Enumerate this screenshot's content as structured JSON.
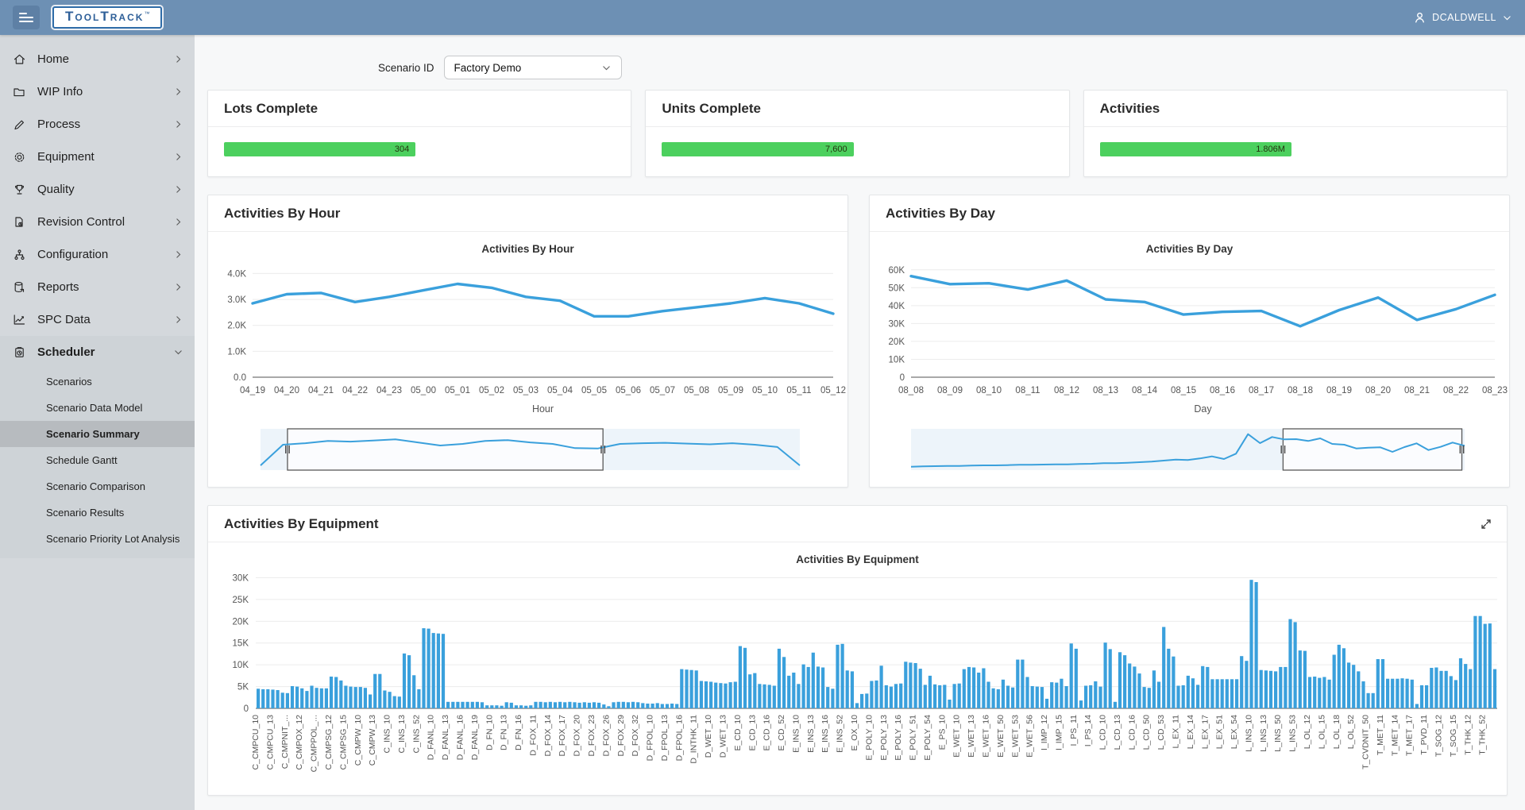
{
  "header": {
    "brand": "ToolTrack",
    "brand_tm": "TM",
    "user": "DCALDWELL"
  },
  "sidebar": {
    "items": [
      {
        "label": "Home",
        "icon": "home-icon"
      },
      {
        "label": "WIP Info",
        "icon": "folder-icon"
      },
      {
        "label": "Process",
        "icon": "pencil-icon"
      },
      {
        "label": "Equipment",
        "icon": "gear-icon"
      },
      {
        "label": "Quality",
        "icon": "trophy-icon"
      },
      {
        "label": "Revision Control",
        "icon": "document-icon"
      },
      {
        "label": "Configuration",
        "icon": "hierarchy-icon"
      },
      {
        "label": "Reports",
        "icon": "database-icon"
      },
      {
        "label": "SPC Data",
        "icon": "spc-chart-icon"
      }
    ],
    "scheduler": {
      "label": "Scheduler",
      "icon": "clipboard-clock-icon",
      "expanded": true,
      "children": [
        {
          "label": "Scenarios",
          "selected": false
        },
        {
          "label": "Scenario Data Model",
          "selected": false
        },
        {
          "label": "Scenario Summary",
          "selected": true
        },
        {
          "label": "Schedule Gantt",
          "selected": false
        },
        {
          "label": "Scenario Comparison",
          "selected": false
        },
        {
          "label": "Scenario Results",
          "selected": false
        },
        {
          "label": "Scenario Priority Lot Analysis",
          "selected": false
        }
      ]
    }
  },
  "toolbar": {
    "scenario_label": "Scenario ID",
    "scenario_value": "Factory Demo"
  },
  "kpis": [
    {
      "title": "Lots Complete",
      "value": "304",
      "fraction": 0.49,
      "color": "#4cd05e"
    },
    {
      "title": "Units Complete",
      "value": "7,600",
      "fraction": 0.49,
      "color": "#4cd05e"
    },
    {
      "title": "Activities",
      "value": "1.806M",
      "fraction": 0.49,
      "color": "#4cd05e"
    }
  ],
  "panels": {
    "hour": {
      "title": "Activities By Hour"
    },
    "day": {
      "title": "Activities By Day"
    },
    "equipment": {
      "title": "Activities By Equipment"
    }
  },
  "chart_data": [
    {
      "id": "hour",
      "type": "line",
      "title": "Activities By Hour",
      "xlabel": "Hour",
      "units": "activities (thousands)",
      "x": [
        "04_19",
        "04_20",
        "04_21",
        "04_22",
        "04_23",
        "05_00",
        "05_01",
        "05_02",
        "05_03",
        "05_04",
        "05_05",
        "05_06",
        "05_07",
        "05_08",
        "05_09",
        "05_10",
        "05_11",
        "05_12"
      ],
      "values": [
        2.85,
        3.2,
        3.25,
        2.9,
        3.1,
        3.35,
        3.6,
        3.45,
        3.1,
        2.95,
        2.35,
        2.35,
        2.55,
        2.7,
        2.85,
        3.05,
        2.85,
        2.45
      ],
      "ylim": [
        0,
        4.35
      ],
      "yticks": [
        {
          "v": 0,
          "label": "0.0"
        },
        {
          "v": 1,
          "label": "1.0K"
        },
        {
          "v": 2,
          "label": "2.0K"
        },
        {
          "v": 3,
          "label": "3.0K"
        },
        {
          "v": 4,
          "label": "4.0K"
        }
      ],
      "line_color": "#3aa0dc",
      "overview": {
        "values": [
          0.2,
          2.9,
          3.1,
          3.4,
          3.3,
          3.45,
          3.6,
          3.2,
          2.8,
          3.0,
          3.4,
          3.5,
          3.2,
          3.0,
          2.45,
          2.4,
          3.0,
          3.1,
          3.15,
          3.05,
          2.95,
          3.1,
          2.9,
          2.6,
          0.2
        ],
        "selection": [
          0.05,
          0.635
        ]
      }
    },
    {
      "id": "day",
      "type": "line",
      "title": "Activities By Day",
      "xlabel": "Day",
      "units": "activities (thousands)",
      "x": [
        "08_08",
        "08_09",
        "08_10",
        "08_11",
        "08_12",
        "08_13",
        "08_14",
        "08_15",
        "08_16",
        "08_17",
        "08_18",
        "08_19",
        "08_20",
        "08_21",
        "08_22",
        "08_23"
      ],
      "values": [
        56.5,
        52,
        52.5,
        49,
        54,
        43.5,
        42,
        35,
        36.5,
        37,
        28.5,
        37.5,
        44.5,
        32,
        38,
        46
      ],
      "ylim": [
        0,
        63
      ],
      "yticks": [
        {
          "v": 0,
          "label": "0"
        },
        {
          "v": 10,
          "label": "10K"
        },
        {
          "v": 20,
          "label": "20K"
        },
        {
          "v": 30,
          "label": "30K"
        },
        {
          "v": 40,
          "label": "40K"
        },
        {
          "v": 50,
          "label": "50K"
        },
        {
          "v": 60,
          "label": "60K"
        }
      ],
      "line_color": "#3aa0dc",
      "overview": {
        "values": [
          0.5,
          1,
          1.5,
          2,
          2,
          2.5,
          3,
          3,
          3.5,
          4,
          4,
          4.5,
          5,
          5,
          5.5,
          6,
          7,
          7,
          8,
          9,
          10,
          12,
          14,
          13,
          16,
          20,
          15,
          25,
          62,
          45,
          56.5,
          52,
          52.5,
          49,
          54,
          43.5,
          42,
          35,
          36.5,
          37,
          28.5,
          37.5,
          44.5,
          32,
          38,
          46,
          40
        ],
        "selection": [
          0.672,
          0.995
        ]
      }
    },
    {
      "id": "equipment",
      "type": "bar",
      "title": "Activities By Equipment",
      "units": "activities (thousands)",
      "label_every": 3,
      "labels": [
        "C_CMPCU_10",
        "C_CMPCU_13",
        "C_CMPNIT_...",
        "C_CMPOX_12",
        "C_CMPPOL_...",
        "C_CMPSG_12",
        "C_CMPSG_15",
        "C_CMPW_10",
        "C_CMPW_13",
        "C_INS_10",
        "C_INS_13",
        "C_INS_52",
        "D_FANL_10",
        "D_FANL_13",
        "D_FANL_16",
        "D_FANL_19",
        "D_FN_10",
        "D_FN_13",
        "D_FN_16",
        "D_FOX_11",
        "D_FOX_14",
        "D_FOX_17",
        "D_FOX_20",
        "D_FOX_23",
        "D_FOX_26",
        "D_FOX_29",
        "D_FOX_32",
        "D_FPOL_10",
        "D_FPOL_13",
        "D_FPOL_16",
        "D_INTHK_11",
        "D_WET_10",
        "D_WET_13",
        "E_CD_10",
        "E_CD_13",
        "E_CD_16",
        "E_CD_52",
        "E_INS_10",
        "E_INS_13",
        "E_INS_16",
        "E_INS_52",
        "E_OX_10",
        "E_POLY_10",
        "E_POLY_13",
        "E_POLY_16",
        "E_POLY_51",
        "E_POLY_54",
        "E_PS_10",
        "E_WET_10",
        "E_WET_13",
        "E_WET_16",
        "E_WET_50",
        "E_WET_53",
        "E_WET_56",
        "I_IMP_12",
        "I_IMP_15",
        "I_PS_11",
        "I_PS_14",
        "L_CD_10",
        "L_CD_13",
        "L_CD_16",
        "L_CD_50",
        "L_CD_53",
        "L_EX_11",
        "L_EX_14",
        "L_EX_17",
        "L_EX_51",
        "L_EX_54",
        "L_INS_10",
        "L_INS_13",
        "L_INS_50",
        "L_INS_53",
        "L_OL_12",
        "L_OL_15",
        "L_OL_18",
        "L_OL_52",
        "T_CVDNIT_50",
        "T_MET_11",
        "T_MET_14",
        "T_MET_17",
        "T_PVD_11",
        "T_SOG_12",
        "T_SOG_15",
        "T_THK_12",
        "T_THK_52"
      ],
      "values": [
        4.5,
        4.4,
        4.4,
        4.3,
        4.2,
        3.6,
        3.5,
        5.1,
        5.0,
        4.6,
        4.0,
        5.2,
        4.7,
        4.6,
        4.6,
        7.3,
        7.2,
        6.4,
        5.2,
        5.0,
        4.9,
        4.9,
        4.7,
        3.2,
        7.9,
        7.9,
        4.1,
        3.8,
        2.8,
        2.7,
        12.6,
        12.2,
        7.6,
        4.4,
        18.4,
        18.3,
        17.3,
        17.2,
        17.1,
        1.5,
        1.5,
        1.5,
        1.5,
        1.5,
        1.5,
        1.5,
        1.4,
        0.7,
        0.7,
        0.7,
        0.6,
        1.4,
        1.3,
        0.7,
        0.7,
        0.6,
        0.7,
        1.5,
        1.5,
        1.4,
        1.5,
        1.4,
        1.5,
        1.4,
        1.5,
        1.4,
        1.3,
        1.4,
        1.3,
        1.4,
        1.3,
        0.9,
        0.5,
        1.4,
        1.5,
        1.5,
        1.4,
        1.5,
        1.4,
        1.2,
        1.1,
        1.1,
        1.2,
        1.0,
        1.0,
        1.1,
        1.0,
        9.0,
        8.9,
        8.8,
        8.7,
        6.3,
        6.2,
        6.1,
        5.9,
        5.8,
        5.7,
        6.0,
        6.1,
        14.3,
        13.9,
        7.8,
        8.1,
        5.6,
        5.5,
        5.4,
        5.2,
        13.7,
        11.8,
        7.5,
        8.2,
        5.6,
        10.1,
        9.5,
        12.8,
        9.6,
        9.4,
        4.9,
        4.5,
        14.6,
        14.8,
        8.7,
        8.5,
        1.2,
        3.3,
        3.4,
        6.3,
        6.4,
        9.8,
        5.3,
        5.0,
        5.6,
        5.7,
        10.7,
        10.5,
        10.4,
        9.1,
        5.4,
        7.5,
        5.5,
        5.3,
        5.4,
        2.0,
        5.6,
        5.7,
        9.0,
        9.5,
        9.4,
        8.2,
        9.2,
        6.1,
        4.6,
        4.4,
        6.6,
        5.2,
        4.8,
        11.2,
        11.2,
        7.2,
        5.1,
        5.0,
        4.9,
        2.2,
        6.0,
        5.9,
        6.8,
        5.1,
        14.9,
        13.7,
        1.8,
        5.2,
        5.3,
        6.2,
        5.0,
        15.1,
        13.6,
        1.5,
        12.9,
        12.2,
        10.3,
        9.6,
        8.0,
        4.9,
        4.7,
        8.7,
        6.1,
        18.7,
        13.7,
        11.9,
        5.2,
        5.3,
        7.5,
        6.9,
        5.4,
        9.7,
        9.5,
        6.7,
        6.7,
        6.7,
        6.7,
        6.7,
        6.7,
        12.0,
        10.9,
        29.5,
        29.0,
        8.8,
        8.7,
        8.6,
        8.5,
        9.5,
        9.5,
        20.5,
        19.8,
        13.3,
        13.2,
        7.2,
        7.3,
        7.0,
        7.2,
        6.6,
        12.3,
        14.6,
        13.8,
        10.5,
        10.0,
        8.5,
        6.2,
        3.5,
        3.5,
        11.3,
        11.3,
        6.8,
        6.8,
        6.8,
        6.9,
        6.8,
        6.6,
        1.0,
        5.3,
        5.3,
        9.3,
        9.4,
        8.6,
        8.6,
        7.4,
        6.5,
        11.5,
        10.2,
        9.0,
        21.2,
        21.2,
        19.4,
        19.5,
        9.0
      ],
      "ylim": [
        0,
        31
      ],
      "yticks": [
        {
          "v": 0,
          "label": "0"
        },
        {
          "v": 5,
          "label": "5K"
        },
        {
          "v": 10,
          "label": "10K"
        },
        {
          "v": 15,
          "label": "15K"
        },
        {
          "v": 20,
          "label": "20K"
        },
        {
          "v": 25,
          "label": "25K"
        },
        {
          "v": 30,
          "label": "30K"
        }
      ],
      "bar_color": "#3aa0dc"
    }
  ],
  "colors": {
    "topbar": "#6d90b4",
    "sidebar": "#d4d8dc",
    "sidebar_selected": "#b7bbbf",
    "accent_blue": "#3aa0dc",
    "progress_green": "#4cd05e"
  }
}
